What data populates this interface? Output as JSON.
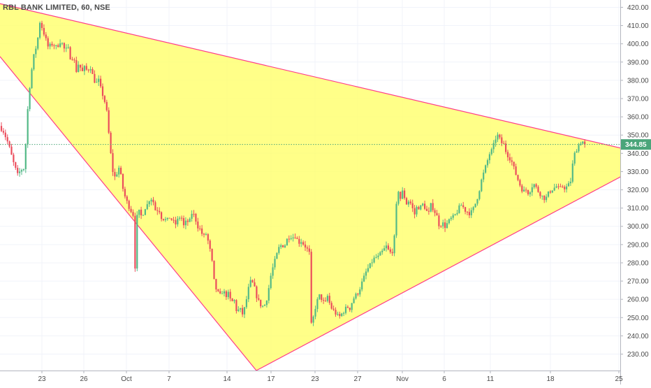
{
  "chart_data": {
    "type": "candlestick",
    "title": "RBL BANK LIMITED, 60, NSE",
    "ylim": [
      221,
      424
    ],
    "y_ticks": [
      230,
      240,
      250,
      260,
      270,
      280,
      290,
      300,
      310,
      320,
      330,
      340,
      350,
      360,
      370,
      380,
      390,
      400,
      410,
      420
    ],
    "x_ticks": [
      {
        "label": "23",
        "t": 60
      },
      {
        "label": "26",
        "t": 120
      },
      {
        "label": "Oct",
        "t": 181
      },
      {
        "label": "7",
        "t": 242
      },
      {
        "label": "14",
        "t": 325
      },
      {
        "label": "17",
        "t": 388
      },
      {
        "label": "23",
        "t": 451
      },
      {
        "label": "27",
        "t": 512
      },
      {
        "label": "Nov",
        "t": 576
      },
      {
        "label": "6",
        "t": 636
      },
      {
        "label": "11",
        "t": 702
      },
      {
        "label": "18",
        "t": 788
      },
      {
        "label": "25",
        "t": 886
      }
    ],
    "last_price": "344.85",
    "last_price_value": 344.85,
    "colors": {
      "up": "#53b987",
      "down": "#eb4d5c",
      "triangle_fill": "#ffff66",
      "trendline": "#ff3d88",
      "last_price_badge": "#4aa57a"
    },
    "trendlines": [
      {
        "name": "upper",
        "from": [
          0,
          422
        ],
        "to": [
          932,
          339
        ]
      },
      {
        "name": "lower-left",
        "from": [
          0,
          393
        ],
        "to": [
          367,
          221
        ]
      },
      {
        "name": "lower-right",
        "from": [
          367,
          221
        ],
        "to": [
          932,
          336
        ]
      }
    ],
    "price_path": [
      [
        0,
        356
      ],
      [
        8,
        352
      ],
      [
        15,
        345
      ],
      [
        22,
        335
      ],
      [
        28,
        328
      ],
      [
        33,
        331
      ],
      [
        38,
        332
      ],
      [
        41,
        355
      ],
      [
        44,
        372
      ],
      [
        48,
        385
      ],
      [
        52,
        395
      ],
      [
        56,
        400
      ],
      [
        60,
        412
      ],
      [
        64,
        408
      ],
      [
        68,
        403
      ],
      [
        72,
        398
      ],
      [
        78,
        400
      ],
      [
        84,
        398
      ],
      [
        90,
        402
      ],
      [
        96,
        396
      ],
      [
        100,
        398
      ],
      [
        104,
        392
      ],
      [
        108,
        393
      ],
      [
        112,
        385
      ],
      [
        116,
        390
      ],
      [
        120,
        384
      ],
      [
        124,
        387
      ],
      [
        128,
        385
      ],
      [
        132,
        388
      ],
      [
        136,
        382
      ],
      [
        140,
        378
      ],
      [
        144,
        380
      ],
      [
        148,
        374
      ],
      [
        152,
        370
      ],
      [
        156,
        362
      ],
      [
        160,
        345
      ],
      [
        163,
        334
      ],
      [
        166,
        326
      ],
      [
        170,
        329
      ],
      [
        174,
        333
      ],
      [
        178,
        322
      ],
      [
        182,
        316
      ],
      [
        186,
        312
      ],
      [
        190,
        309
      ],
      [
        194,
        306
      ],
      [
        196,
        275
      ],
      [
        199,
        305
      ],
      [
        202,
        308
      ],
      [
        206,
        305
      ],
      [
        210,
        310
      ],
      [
        214,
        312
      ],
      [
        218,
        316
      ],
      [
        222,
        314
      ],
      [
        226,
        308
      ],
      [
        230,
        310
      ],
      [
        234,
        305
      ],
      [
        238,
        304
      ],
      [
        242,
        303
      ],
      [
        246,
        305
      ],
      [
        250,
        303
      ],
      [
        254,
        301
      ],
      [
        258,
        304
      ],
      [
        262,
        306
      ],
      [
        266,
        300
      ],
      [
        270,
        303
      ],
      [
        274,
        302
      ],
      [
        278,
        308
      ],
      [
        282,
        305
      ],
      [
        286,
        300
      ],
      [
        290,
        298
      ],
      [
        294,
        294
      ],
      [
        298,
        296
      ],
      [
        302,
        290
      ],
      [
        306,
        282
      ],
      [
        310,
        268
      ],
      [
        314,
        264
      ],
      [
        318,
        262
      ],
      [
        322,
        265
      ],
      [
        326,
        262
      ],
      [
        330,
        263
      ],
      [
        334,
        258
      ],
      [
        338,
        260
      ],
      [
        342,
        253
      ],
      [
        346,
        255
      ],
      [
        350,
        252
      ],
      [
        354,
        256
      ],
      [
        358,
        265
      ],
      [
        362,
        270
      ],
      [
        366,
        268
      ],
      [
        370,
        262
      ],
      [
        374,
        258
      ],
      [
        378,
        256
      ],
      [
        382,
        257
      ],
      [
        386,
        262
      ],
      [
        390,
        272
      ],
      [
        394,
        278
      ],
      [
        398,
        283
      ],
      [
        402,
        288
      ],
      [
        406,
        290
      ],
      [
        410,
        289
      ],
      [
        414,
        293
      ],
      [
        418,
        295
      ],
      [
        422,
        294
      ],
      [
        426,
        295
      ],
      [
        430,
        291
      ],
      [
        434,
        292
      ],
      [
        438,
        290
      ],
      [
        442,
        288
      ],
      [
        446,
        285
      ],
      [
        449,
        240
      ],
      [
        452,
        252
      ],
      [
        456,
        258
      ],
      [
        460,
        262
      ],
      [
        464,
        260
      ],
      [
        468,
        257
      ],
      [
        472,
        262
      ],
      [
        476,
        256
      ],
      [
        480,
        254
      ],
      [
        484,
        252
      ],
      [
        488,
        250
      ],
      [
        492,
        252
      ],
      [
        496,
        254
      ],
      [
        500,
        256
      ],
      [
        504,
        255
      ],
      [
        508,
        260
      ],
      [
        512,
        262
      ],
      [
        516,
        264
      ],
      [
        520,
        268
      ],
      [
        524,
        272
      ],
      [
        528,
        276
      ],
      [
        532,
        278
      ],
      [
        536,
        281
      ],
      [
        540,
        283
      ],
      [
        544,
        283
      ],
      [
        548,
        285
      ],
      [
        552,
        287
      ],
      [
        556,
        289
      ],
      [
        560,
        286
      ],
      [
        564,
        285
      ],
      [
        568,
        295
      ],
      [
        572,
        322
      ],
      [
        576,
        315
      ],
      [
        580,
        320
      ],
      [
        584,
        312
      ],
      [
        588,
        314
      ],
      [
        592,
        312
      ],
      [
        596,
        306
      ],
      [
        600,
        311
      ],
      [
        604,
        310
      ],
      [
        608,
        312
      ],
      [
        612,
        310
      ],
      [
        616,
        306
      ],
      [
        620,
        312
      ],
      [
        624,
        309
      ],
      [
        628,
        306
      ],
      [
        632,
        300
      ],
      [
        636,
        302
      ],
      [
        640,
        300
      ],
      [
        644,
        302
      ],
      [
        648,
        304
      ],
      [
        652,
        305
      ],
      [
        656,
        307
      ],
      [
        660,
        310
      ],
      [
        664,
        312
      ],
      [
        668,
        309
      ],
      [
        672,
        308
      ],
      [
        676,
        307
      ],
      [
        680,
        309
      ],
      [
        684,
        313
      ],
      [
        688,
        318
      ],
      [
        692,
        325
      ],
      [
        696,
        330
      ],
      [
        700,
        335
      ],
      [
        704,
        340
      ],
      [
        708,
        342
      ],
      [
        712,
        348
      ],
      [
        716,
        350
      ],
      [
        720,
        346
      ],
      [
        724,
        345
      ],
      [
        728,
        340
      ],
      [
        732,
        338
      ],
      [
        736,
        335
      ],
      [
        740,
        330
      ],
      [
        744,
        326
      ],
      [
        748,
        322
      ],
      [
        752,
        319
      ],
      [
        756,
        320
      ],
      [
        760,
        318
      ],
      [
        764,
        322
      ],
      [
        768,
        323
      ],
      [
        772,
        320
      ],
      [
        776,
        318
      ],
      [
        780,
        316
      ],
      [
        784,
        315
      ],
      [
        788,
        318
      ],
      [
        792,
        320
      ],
      [
        796,
        321
      ],
      [
        800,
        322
      ],
      [
        804,
        320
      ],
      [
        808,
        322
      ],
      [
        812,
        321
      ],
      [
        816,
        322
      ],
      [
        820,
        325
      ],
      [
        824,
        338
      ],
      [
        828,
        342
      ],
      [
        832,
        345
      ],
      [
        836,
        347
      ],
      [
        840,
        344.85
      ]
    ]
  }
}
